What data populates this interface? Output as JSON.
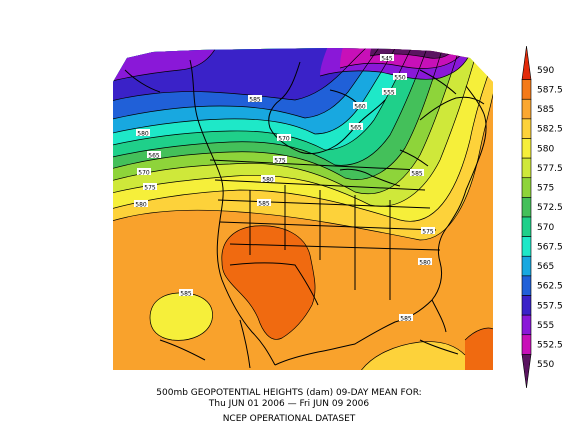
{
  "caption": {
    "line1": "500mb GEOPOTENTIAL HEIGHTS (dam)   09-DAY MEAN FOR:",
    "line2": "Thu JUN 01 2006 — Fri JUN 09 2006",
    "line3": "NCEP OPERATIONAL DATASET"
  },
  "colorbar": {
    "levels": [
      {
        "label": "590",
        "color": "#e22a0a"
      },
      {
        "label": "587.5",
        "color": "#f47a18"
      },
      {
        "label": "585",
        "color": "#fba730"
      },
      {
        "label": "582.5",
        "color": "#fdd23a"
      },
      {
        "label": "580",
        "color": "#f6ef3a"
      },
      {
        "label": "577.5",
        "color": "#cfe83a"
      },
      {
        "label": "575",
        "color": "#8ed43a"
      },
      {
        "label": "572.5",
        "color": "#44c05a"
      },
      {
        "label": "570",
        "color": "#1fd08a"
      },
      {
        "label": "567.5",
        "color": "#1ee8c8"
      },
      {
        "label": "565",
        "color": "#18a8e0"
      },
      {
        "label": "562.5",
        "color": "#2060d8"
      },
      {
        "label": "557.5",
        "color": "#3a22c8"
      },
      {
        "label": "555",
        "color": "#8a18d8"
      },
      {
        "label": "552.5",
        "color": "#c810b8"
      },
      {
        "label": "550",
        "color": "#5a1460"
      }
    ]
  },
  "contour_labels": [
    "545",
    "550",
    "555",
    "560",
    "565",
    "585",
    "580",
    "565",
    "570",
    "575",
    "580",
    "570",
    "575",
    "580",
    "585",
    "575",
    "580",
    "585",
    "585",
    "585"
  ]
}
